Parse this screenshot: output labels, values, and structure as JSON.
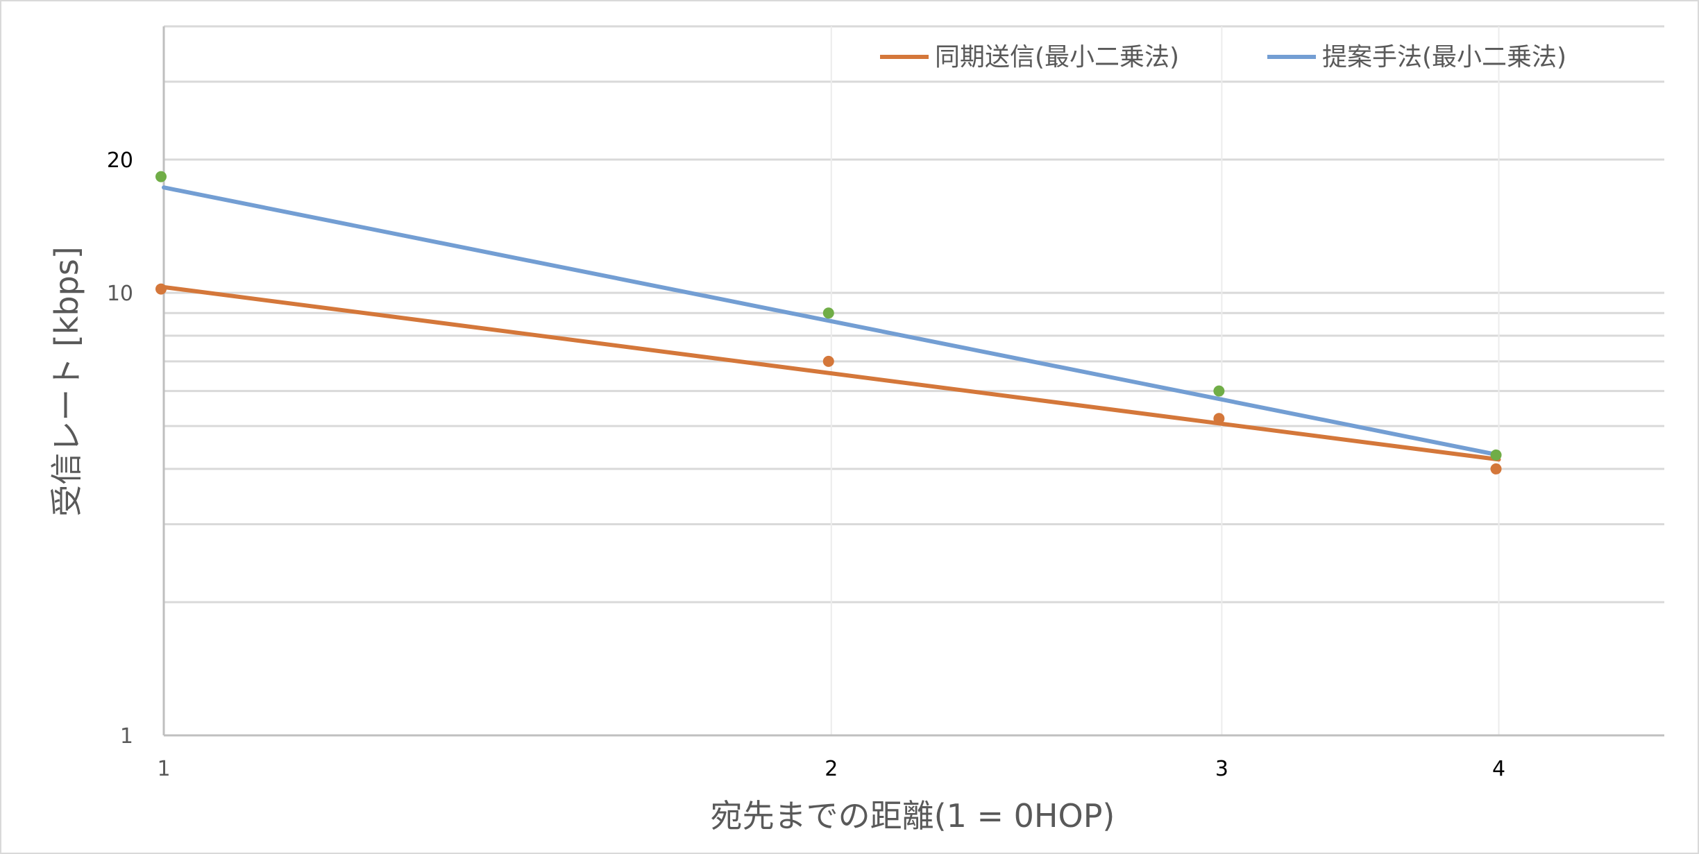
{
  "chart_data": {
    "type": "scatter",
    "xscale": "log",
    "yscale": "log",
    "xlabel": "宛先までの距離(1 = 0HOP)",
    "ylabel": "受信レート [kbps]",
    "xlim": [
      1,
      4.75
    ],
    "ylim": [
      1,
      40
    ],
    "x_ticks": [
      "1",
      "2",
      "3",
      "4"
    ],
    "y_ticks": [
      "1",
      "10",
      "20"
    ],
    "grid": true,
    "legend_position": "top-right",
    "colors": {
      "orange": "#d4773a",
      "blue": "#739ed3",
      "marker_green": "#70ad47",
      "grid": "#d9d9d9",
      "axis": "#bfbfbf"
    },
    "points": [
      {
        "name": "",
        "color": "#d4773a",
        "x": [
          1,
          2,
          3,
          4
        ],
        "y": [
          10.2,
          7.0,
          5.2,
          4.0
        ]
      },
      {
        "name": "",
        "color": "#70ad47",
        "x": [
          1,
          2,
          3,
          4
        ],
        "y": [
          18.3,
          9.0,
          6.0,
          4.3
        ]
      }
    ],
    "series": [
      {
        "name": "同期送信(最小二乗法)",
        "color": "#d4773a",
        "x": [
          1,
          4
        ],
        "y": [
          10.3,
          4.2
        ]
      },
      {
        "name": "提案手法(最小二乗法)",
        "color": "#739ed3",
        "x": [
          1,
          4
        ],
        "y": [
          17.3,
          4.3
        ]
      }
    ]
  }
}
